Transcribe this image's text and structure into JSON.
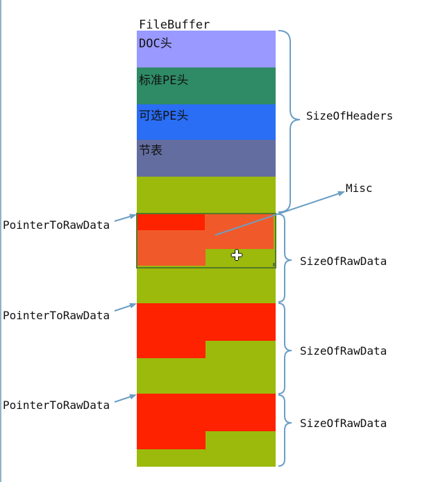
{
  "title": "FileBuffer",
  "headers": [
    {
      "label": "DOC头",
      "color": "#9999ff"
    },
    {
      "label": "标准PE头",
      "color": "#2e8b66"
    },
    {
      "label": "可选PE头",
      "color": "#2a6ef5"
    },
    {
      "label": "节表",
      "color": "#636d9f"
    }
  ],
  "annotations": {
    "size_of_headers": "SizeOfHeaders",
    "misc": "Misc",
    "pointer_to_raw_data": "PointerToRawData",
    "size_of_raw_data": "SizeOfRawData"
  },
  "colors": {
    "section_fill": "#9cba0c",
    "raw_data": "#ff2200",
    "selected_raw": "#f05a2a",
    "arrow": "#6b9ec5",
    "brace": "#6b9ec5",
    "selection_border": "#557a2a"
  }
}
